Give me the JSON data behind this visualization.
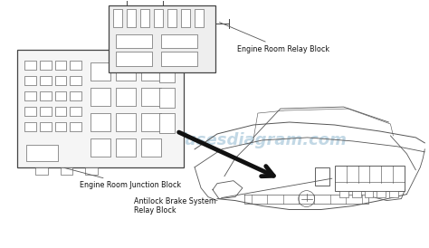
{
  "bg_color": "#ffffff",
  "watermark": "fusesdiagram.com",
  "watermark_color": "#90b8d0",
  "watermark_alpha": 0.55,
  "labels": {
    "relay_block": "Engine Room Relay Block",
    "junction_block": "Engine Room Junction Block",
    "abs_block": "Antilock Brake System\nRelay Block"
  },
  "label_color": "#111111",
  "label_fontsize": 5.8,
  "line_color": "#555555",
  "line_color_dark": "#222222",
  "box_fill": "#f5f5f5",
  "box_edge": "#444444",
  "arrow_color": "#111111",
  "fuse_fill": "#ffffff",
  "relay_fill": "#eeeeee"
}
